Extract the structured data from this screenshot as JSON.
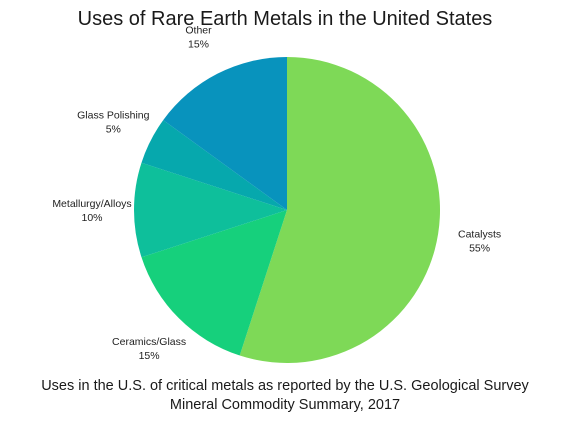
{
  "chart_data": {
    "type": "pie",
    "title": "Uses of Rare Earth Metals in the United States",
    "caption": "Uses in the U.S. of critical metals as reported by the U.S. Geological Survey Mineral Commodity Summary, 2017",
    "slices": [
      {
        "label": "Catalysts",
        "value": 55,
        "value_label": "55%",
        "color": "#7ed957"
      },
      {
        "label": "Ceramics/Glass",
        "value": 15,
        "value_label": "15%",
        "color": "#16d07c"
      },
      {
        "label": "Metallurgy/Alloys",
        "value": 10,
        "value_label": "10%",
        "color": "#0ebf9b"
      },
      {
        "label": "Glass Polishing",
        "value": 5,
        "value_label": "5%",
        "color": "#06a8ad"
      },
      {
        "label": "Other",
        "value": 15,
        "value_label": "15%",
        "color": "#0893bd"
      }
    ],
    "start_angle_deg": 0,
    "direction": "clockwise"
  }
}
